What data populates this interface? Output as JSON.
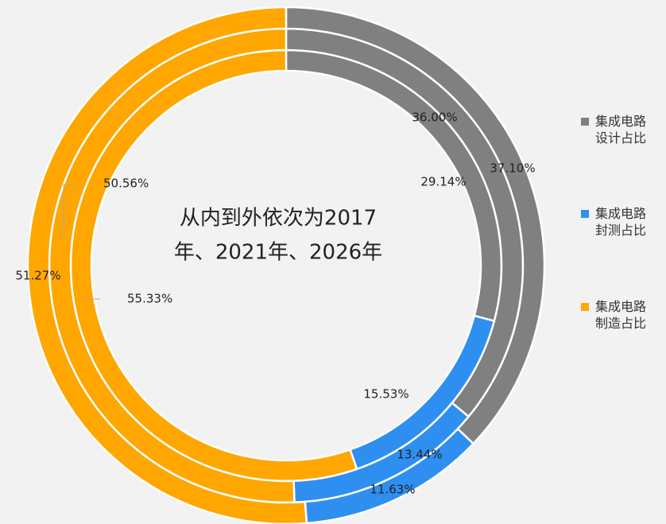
{
  "chart_data": {
    "type": "pie",
    "annotation": [
      "从内到外依次为2017",
      "年、2021年、2026年"
    ],
    "categories": [
      "集成电路设计占比",
      "集成电路封测占比",
      "集成电路制造占比"
    ],
    "colors": [
      "#808080",
      "#2f8ff0",
      "#ffa600"
    ],
    "series": [
      {
        "values": [
          29.14,
          15.53,
          55.33
        ],
        "value_labels": [
          "29.14%",
          "15.53%",
          "55.33%"
        ]
      },
      {
        "values": [
          36,
          13.44,
          50.56
        ],
        "value_labels": [
          "36.00%",
          "13.44%",
          "50.56%"
        ]
      },
      {
        "values": [
          37.1,
          11.63,
          51.27
        ],
        "value_labels": [
          "37.10%",
          "11.63%",
          "51.27%"
        ]
      }
    ],
    "legend": "right"
  }
}
